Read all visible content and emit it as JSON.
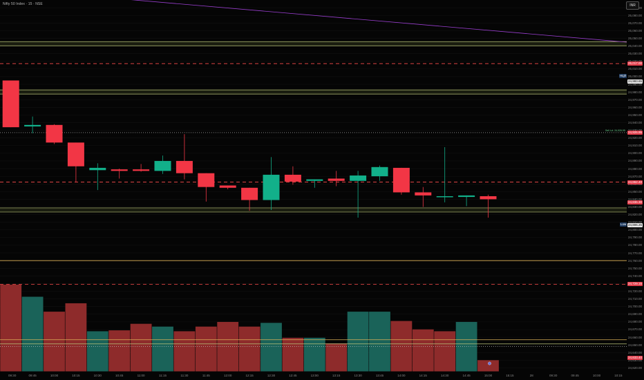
{
  "header": {
    "symbol_title": "Nifty 50 Index · 15 · NSE",
    "interval_button": "INR"
  },
  "colors": {
    "up": "#12b08a",
    "down": "#f23645",
    "vol_up": "#1a6359",
    "vol_down": "#8e2b2b",
    "level_red": "#ff4d4d",
    "level_olive": "#b9c277",
    "level_yellow": "#e0b35a",
    "trend_line": "#9b3fd1"
  },
  "price_axis": {
    "labels": [
      "25,090.00",
      "25,080.00",
      "25,070.00",
      "25,060.00",
      "25,050.00",
      "25,040.00",
      "25,030.00",
      "25,020.00",
      "25,010.00",
      "25,000.00",
      "24,990.00",
      "24,980.00",
      "24,970.00",
      "24,960.00",
      "24,950.00",
      "24,940.00",
      "24,930.00",
      "24,920.00",
      "24,910.00",
      "24,900.00",
      "24,890.00",
      "24,880.00",
      "24,870.00",
      "24,860.00",
      "24,850.00",
      "24,840.00",
      "24,830.00",
      "24,820.00",
      "24,810.00",
      "24,800.00",
      "24,790.00",
      "24,780.00",
      "24,770.00",
      "24,760.00",
      "24,750.00",
      "24,740.00",
      "24,730.00",
      "24,720.00",
      "24,710.00",
      "24,700.00",
      "24,690.00",
      "24,680.00",
      "24,670.00",
      "24,660.00",
      "24,650.00",
      "24,640.00",
      "24,630.00",
      "24,620.00"
    ],
    "badges": [
      {
        "text": "25,017.00",
        "style": "red"
      },
      {
        "text": "24,993.65",
        "style": "white"
      },
      {
        "text": "24,926.95",
        "style": "red"
      },
      {
        "text": "24,862.40",
        "style": "red"
      },
      {
        "text": "24,836.30",
        "style": "red"
      },
      {
        "text": "24,806.25",
        "style": "white"
      },
      {
        "text": "24,729.15",
        "style": "red"
      },
      {
        "text": "24,633.40",
        "style": "red"
      }
    ],
    "side_tags": [
      {
        "text": "High",
        "style": "dark"
      },
      {
        "text": "Low",
        "style": "dark"
      }
    ],
    "mid_tag": "Sell Lvl. 24,926.95"
  },
  "time_axis": {
    "labels": [
      "09:30",
      "09:45",
      "10:00",
      "10:15",
      "10:30",
      "10:45",
      "11:00",
      "11:15",
      "11:30",
      "11:45",
      "12:00",
      "12:15",
      "12:30",
      "12:45",
      "13:00",
      "13:15",
      "13:30",
      "13:45",
      "14:00",
      "14:15",
      "14:30",
      "14:45",
      "15:00",
      "15:15",
      "28",
      "09:30",
      "09:45",
      "10:00",
      "10:15"
    ]
  },
  "chart_data": {
    "type": "candlestick",
    "categories": [
      "09:30",
      "09:45",
      "10:00",
      "10:15",
      "10:30",
      "10:45",
      "11:00",
      "11:15",
      "11:30",
      "11:45",
      "12:00",
      "12:15",
      "12:30",
      "12:45",
      "13:00",
      "13:15",
      "13:30",
      "13:45",
      "14:00",
      "14:15",
      "14:30",
      "14:45",
      "15:00"
    ],
    "candles": [
      {
        "o": 24995,
        "h": 24995,
        "l": 24934,
        "c": 24934
      },
      {
        "o": 24935,
        "h": 24948,
        "l": 24926,
        "c": 24937
      },
      {
        "o": 24937,
        "h": 24938,
        "l": 24912,
        "c": 24914
      },
      {
        "o": 24914,
        "h": 24914,
        "l": 24862,
        "c": 24883
      },
      {
        "o": 24878,
        "h": 24887,
        "l": 24852,
        "c": 24881
      },
      {
        "o": 24879,
        "h": 24880,
        "l": 24867,
        "c": 24877
      },
      {
        "o": 24879,
        "h": 24886,
        "l": 24876,
        "c": 24877
      },
      {
        "o": 24877,
        "h": 24897,
        "l": 24873,
        "c": 24890
      },
      {
        "o": 24890,
        "h": 24925,
        "l": 24866,
        "c": 24874
      },
      {
        "o": 24874,
        "h": 24874,
        "l": 24837,
        "c": 24856
      },
      {
        "o": 24858,
        "h": 24858,
        "l": 24853,
        "c": 24855
      },
      {
        "o": 24855,
        "h": 24855,
        "l": 24825,
        "c": 24839
      },
      {
        "o": 24839,
        "h": 24895,
        "l": 24826,
        "c": 24872
      },
      {
        "o": 24872,
        "h": 24883,
        "l": 24859,
        "c": 24863
      },
      {
        "o": 24864,
        "h": 24866,
        "l": 24855,
        "c": 24866
      },
      {
        "o": 24867,
        "h": 24877,
        "l": 24857,
        "c": 24864
      },
      {
        "o": 24864,
        "h": 24877,
        "l": 24816,
        "c": 24871
      },
      {
        "o": 24870,
        "h": 24884,
        "l": 24864,
        "c": 24882
      },
      {
        "o": 24881,
        "h": 24881,
        "l": 24846,
        "c": 24849
      },
      {
        "o": 24849,
        "h": 24856,
        "l": 24830,
        "c": 24845
      },
      {
        "o": 24843,
        "h": 24908,
        "l": 24836,
        "c": 24844
      },
      {
        "o": 24843,
        "h": 24845,
        "l": 24831,
        "c": 24845
      },
      {
        "o": 24844,
        "h": 24846,
        "l": 24816,
        "c": 24840
      }
    ],
    "volume_levels": [
      0.93,
      0.8,
      0.64,
      0.73,
      0.43,
      0.44,
      0.51,
      0.48,
      0.43,
      0.48,
      0.53,
      0.48,
      0.52,
      0.36,
      0.36,
      0.3,
      0.64,
      0.64,
      0.54,
      0.45,
      0.43,
      0.53,
      0.12
    ],
    "volume_direction": [
      "down",
      "up",
      "down",
      "down",
      "up",
      "down",
      "down",
      "up",
      "down",
      "down",
      "down",
      "down",
      "up",
      "down",
      "up",
      "down",
      "up",
      "up",
      "down",
      "down",
      "down",
      "up",
      "down"
    ],
    "levels": [
      {
        "price": 25043,
        "kind": "zone-olive"
      },
      {
        "price": 25017,
        "kind": "dashed-red"
      },
      {
        "price": 24980,
        "kind": "zone-olive"
      },
      {
        "price": 24926.95,
        "kind": "dotted-white"
      },
      {
        "price": 24862.4,
        "kind": "dashed-red"
      },
      {
        "price": 24826,
        "kind": "zone-olive"
      },
      {
        "price": 24760,
        "kind": "solid-yellow"
      },
      {
        "price": 24729.15,
        "kind": "dashed-red"
      },
      {
        "price": 24654,
        "kind": "zone-yellow"
      },
      {
        "price": 24648,
        "kind": "dotted-white"
      }
    ],
    "trend_line": {
      "from": {
        "price": 25115,
        "index": 0
      },
      "to": {
        "price": 25045,
        "index": 29
      }
    },
    "ylim": [
      24615,
      25100
    ]
  }
}
